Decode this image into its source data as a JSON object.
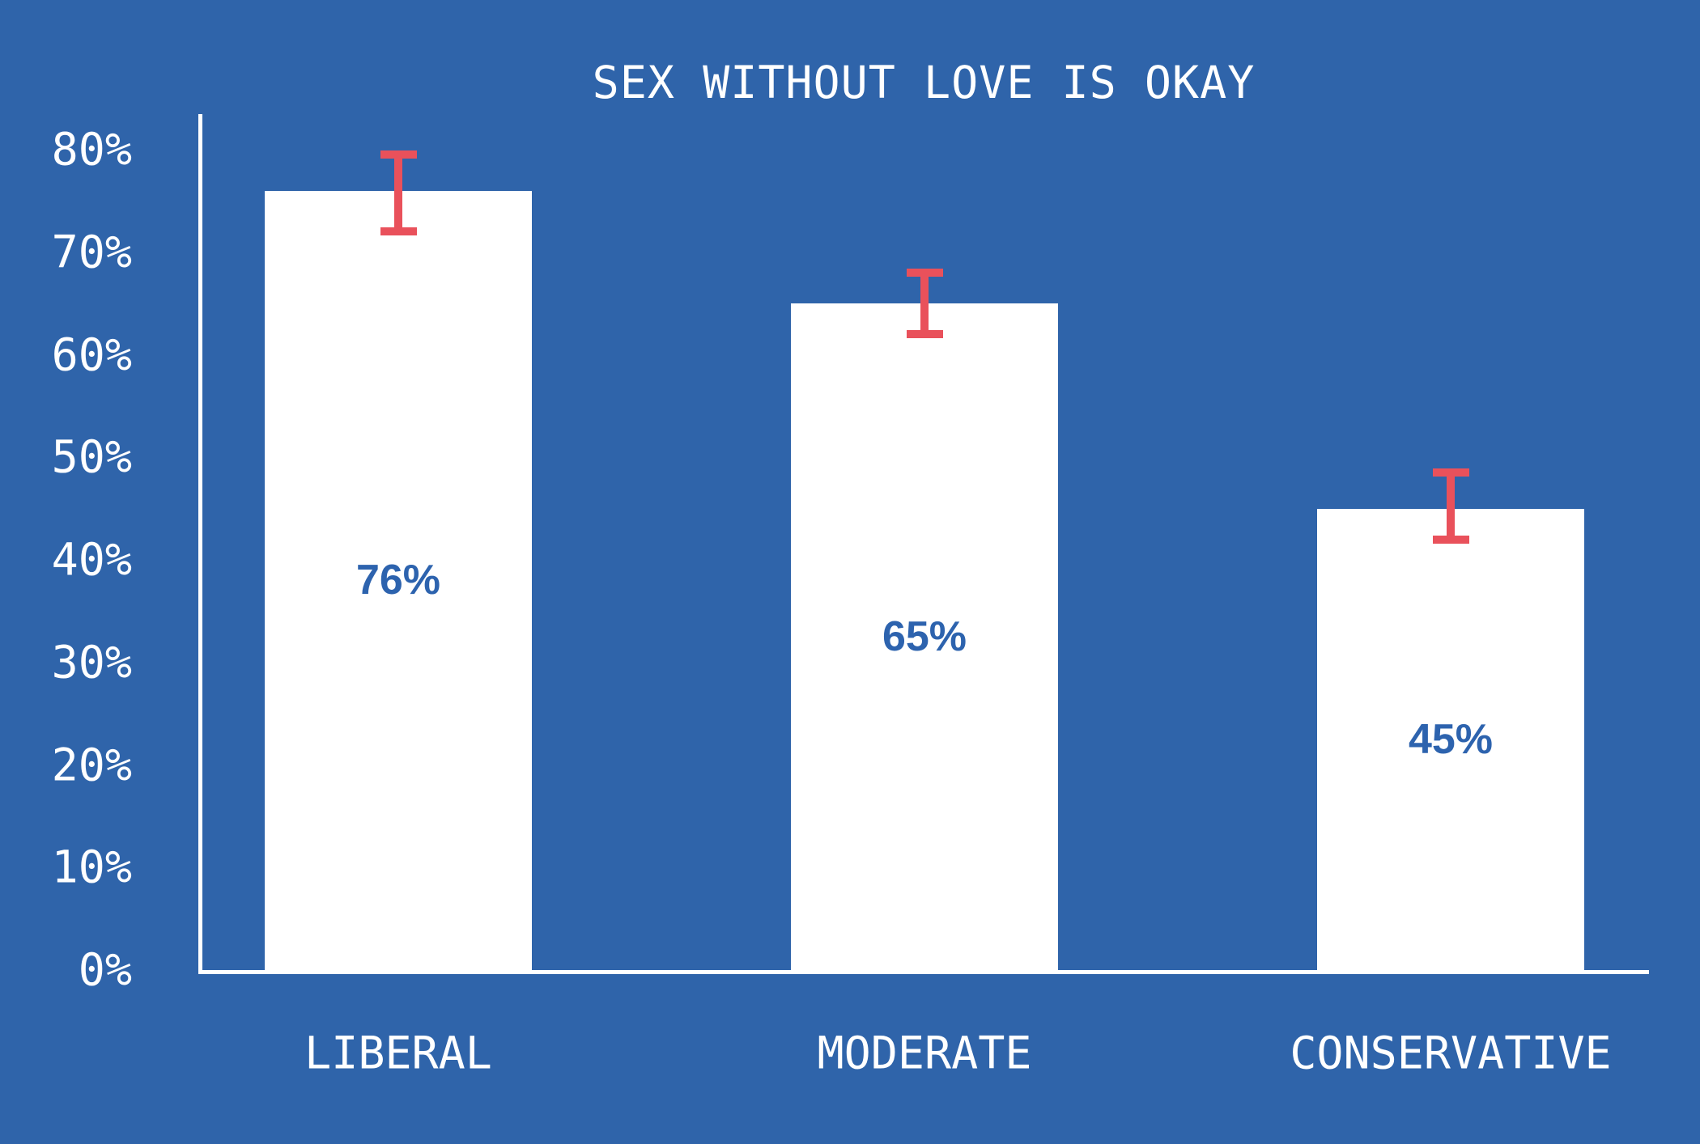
{
  "chart_data": {
    "type": "bar",
    "title": "SEX WITHOUT LOVE IS OKAY",
    "categories": [
      "LIBERAL",
      "MODERATE",
      "CONSERVATIVE"
    ],
    "values": [
      76,
      65,
      45
    ],
    "bar_labels": [
      "76%",
      "65%",
      "45%"
    ],
    "error_bars": [
      {
        "low": 72,
        "high": 79.5
      },
      {
        "low": 62,
        "high": 68
      },
      {
        "low": 42,
        "high": 48.5
      }
    ],
    "yticks": [
      {
        "value": 0,
        "label": "0%"
      },
      {
        "value": 10,
        "label": "10%"
      },
      {
        "value": 20,
        "label": "20%"
      },
      {
        "value": 30,
        "label": "30%"
      },
      {
        "value": 40,
        "label": "40%"
      },
      {
        "value": 50,
        "label": "50%"
      },
      {
        "value": 60,
        "label": "60%"
      },
      {
        "value": 70,
        "label": "70%"
      },
      {
        "value": 80,
        "label": "80%"
      }
    ],
    "xlabel": "",
    "ylabel": "",
    "ylim": [
      0,
      80
    ],
    "grid": false,
    "legend": false,
    "colors": {
      "background": "#2f64aa",
      "bar_fill": "#ffffff",
      "error_bar": "#e9515b",
      "bar_value_text": "#2d63ae",
      "axis_line": "#ffffff",
      "tick_text": "#ffffff",
      "title_text": "#ffffff"
    }
  }
}
